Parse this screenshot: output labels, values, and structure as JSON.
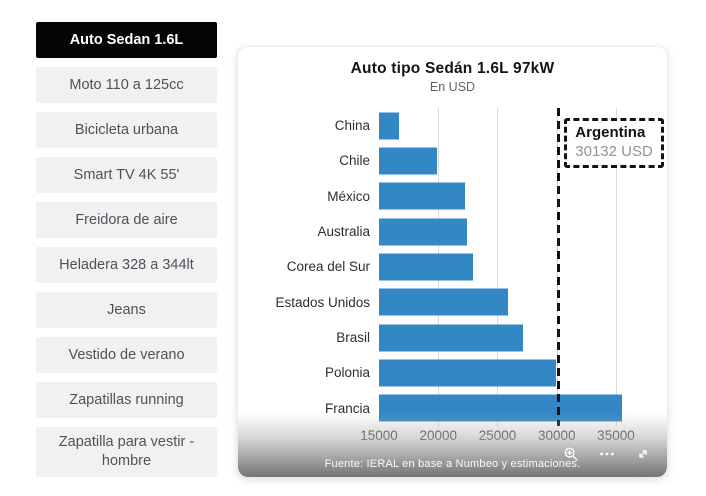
{
  "sidebar": {
    "items": [
      {
        "label": "Auto Sedan 1.6L",
        "active": true
      },
      {
        "label": "Moto 110 a 125cc",
        "active": false
      },
      {
        "label": "Bicicleta urbana",
        "active": false
      },
      {
        "label": "Smart TV 4K 55'",
        "active": false
      },
      {
        "label": "Freidora de aire",
        "active": false
      },
      {
        "label": "Heladera 328 a 344lt",
        "active": false
      },
      {
        "label": "Jeans",
        "active": false
      },
      {
        "label": "Vestido de verano",
        "active": false
      },
      {
        "label": "Zapatillas running",
        "active": false
      },
      {
        "label": "Zapatilla para vestir - hombre",
        "active": false
      }
    ],
    "active_bg": "#050505",
    "inactive_bg": "#f1f1f2",
    "text_color": "#4e525b"
  },
  "chart": {
    "title": "Auto tipo Sedán 1.6L 97kW",
    "subtitle": "En USD",
    "source": "Fuente: IERAL en base a Numbeo y estimaciones.",
    "annotation": {
      "country": "Argentina",
      "value_text": "30132 USD"
    },
    "toolbar": {
      "zoom_in": "zoom-in",
      "more_options": "more-options",
      "fullscreen": "fullscreen"
    }
  },
  "chart_data": {
    "type": "bar",
    "orientation": "horizontal",
    "title": "Auto tipo Sedán 1.6L 97kW",
    "subtitle": "En USD",
    "units": "USD",
    "categories": [
      "China",
      "Chile",
      "México",
      "Australia",
      "Corea del Sur",
      "Estados Unidos",
      "Brasil",
      "Polonia",
      "Francia"
    ],
    "values": [
      16700,
      19900,
      22250,
      22450,
      22900,
      25900,
      27150,
      29950,
      35500
    ],
    "reference_line": {
      "label": "Argentina",
      "value": 30132,
      "style": "dashed"
    },
    "xlim": [
      15000,
      36100
    ],
    "xticks": [
      15000,
      20000,
      25000,
      30000,
      35000
    ],
    "grid": true,
    "legend": false,
    "bar_color": "#3387c5",
    "gridline_color": "#d9d9d9",
    "source": "Fuente: IERAL en base a Numbeo y estimaciones."
  }
}
